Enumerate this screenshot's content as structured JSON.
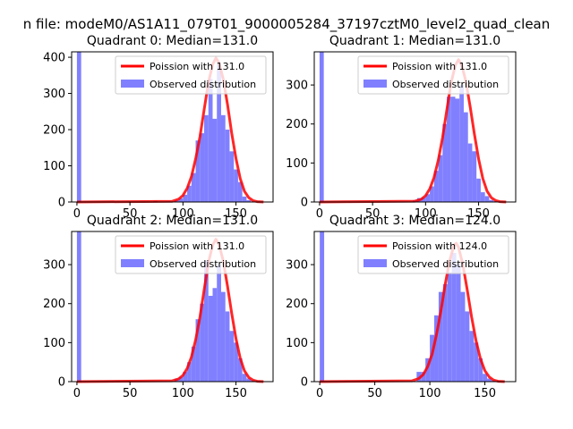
{
  "figure": {
    "title": "n file: modeM0/AS1A11_079T01_9000005284_37197cztM0_level2_quad_clean",
    "background": "#ffffff"
  },
  "colors": {
    "histogram": "#8080ff",
    "poisson": "#ff0000",
    "axis": "#000000"
  },
  "chart_data": [
    {
      "type": "bar+line",
      "title": "Quadrant 0: Median=131.0",
      "xlim": [
        -5,
        185
      ],
      "ylim": [
        0,
        415
      ],
      "xticks": [
        0,
        50,
        100,
        150
      ],
      "yticks": [
        0,
        100,
        200,
        300,
        400
      ],
      "grid": false,
      "legend_position": "top-right",
      "bin_width": 4,
      "histogram": {
        "name": "Observed distribution",
        "bin_starts": [
          0,
          72,
          84,
          92,
          96,
          100,
          104,
          108,
          112,
          116,
          120,
          124,
          128,
          132,
          136,
          140,
          144,
          148,
          152,
          156,
          160
        ],
        "counts": [
          415,
          3,
          2,
          5,
          10,
          20,
          45,
          80,
          170,
          190,
          240,
          340,
          230,
          380,
          240,
          200,
          140,
          90,
          55,
          15,
          5
        ]
      },
      "poisson": {
        "name": "Poission with 131.0",
        "x": [
          0,
          90,
          96,
          100,
          104,
          108,
          112,
          116,
          120,
          124,
          128,
          131,
          134,
          138,
          142,
          146,
          150,
          154,
          158,
          162,
          166,
          170,
          176
        ],
        "y": [
          0,
          2,
          8,
          18,
          38,
          70,
          120,
          180,
          255,
          330,
          380,
          398,
          385,
          340,
          270,
          190,
          120,
          65,
          30,
          12,
          4,
          1,
          0
        ]
      }
    },
    {
      "type": "bar+line",
      "title": "Quadrant 1: Median=131.0",
      "xlim": [
        -5,
        185
      ],
      "ylim": [
        0,
        385
      ],
      "xticks": [
        0,
        50,
        100,
        150
      ],
      "yticks": [
        0,
        100,
        200,
        300
      ],
      "grid": false,
      "legend_position": "top-right",
      "bin_width": 4,
      "histogram": {
        "name": "Observed distribution",
        "bin_starts": [
          0,
          88,
          92,
          96,
          100,
          104,
          108,
          112,
          116,
          120,
          124,
          128,
          132,
          136,
          140,
          144,
          148,
          152,
          156,
          160,
          164
        ],
        "counts": [
          385,
          5,
          10,
          12,
          20,
          40,
          80,
          120,
          200,
          270,
          270,
          265,
          300,
          230,
          150,
          130,
          60,
          25,
          15,
          5,
          2
        ]
      },
      "poisson": {
        "name": "Poission with 131.0",
        "x": [
          0,
          90,
          96,
          100,
          104,
          108,
          112,
          116,
          120,
          124,
          128,
          131,
          134,
          138,
          142,
          146,
          150,
          154,
          158,
          162,
          166,
          170,
          176
        ],
        "y": [
          0,
          2,
          7,
          16,
          34,
          63,
          108,
          165,
          235,
          305,
          350,
          365,
          352,
          310,
          245,
          175,
          110,
          60,
          28,
          11,
          4,
          1,
          0
        ]
      }
    },
    {
      "type": "bar+line",
      "title": "Quadrant 2: Median=131.0",
      "xlim": [
        -5,
        185
      ],
      "ylim": [
        0,
        385
      ],
      "xticks": [
        0,
        50,
        100,
        150
      ],
      "yticks": [
        0,
        100,
        200,
        300
      ],
      "grid": false,
      "legend_position": "top-right",
      "bin_width": 4,
      "histogram": {
        "name": "Observed distribution",
        "bin_starts": [
          0,
          92,
          96,
          100,
          104,
          108,
          112,
          116,
          120,
          124,
          128,
          132,
          136,
          140,
          144,
          148,
          152,
          156,
          160,
          164
        ],
        "counts": [
          385,
          8,
          12,
          25,
          50,
          90,
          160,
          200,
          310,
          220,
          240,
          300,
          230,
          180,
          130,
          100,
          60,
          20,
          8,
          3
        ]
      },
      "poisson": {
        "name": "Poission with 131.0",
        "x": [
          0,
          90,
          96,
          100,
          104,
          108,
          112,
          116,
          120,
          124,
          128,
          131,
          134,
          138,
          142,
          146,
          150,
          154,
          158,
          162,
          166,
          170,
          176
        ],
        "y": [
          0,
          2,
          7,
          16,
          34,
          63,
          108,
          165,
          235,
          305,
          350,
          365,
          352,
          310,
          245,
          175,
          110,
          60,
          28,
          11,
          4,
          1,
          0
        ]
      }
    },
    {
      "type": "bar+line",
      "title": "Quadrant 3: Median=124.0",
      "xlim": [
        -5,
        178
      ],
      "ylim": [
        0,
        385
      ],
      "xticks": [
        0,
        50,
        100,
        150
      ],
      "yticks": [
        0,
        100,
        200,
        300
      ],
      "grid": false,
      "legend_position": "top-right",
      "bin_width": 4,
      "histogram": {
        "name": "Observed distribution",
        "bin_starts": [
          0,
          88,
          92,
          96,
          100,
          104,
          108,
          112,
          116,
          120,
          124,
          128,
          132,
          136,
          140,
          144,
          148,
          152,
          156
        ],
        "counts": [
          385,
          25,
          25,
          60,
          120,
          170,
          230,
          250,
          280,
          330,
          300,
          230,
          180,
          130,
          100,
          60,
          20,
          8,
          3
        ]
      },
      "poisson": {
        "name": "Poission with 124.0",
        "x": [
          0,
          84,
          90,
          94,
          98,
          102,
          106,
          110,
          114,
          118,
          122,
          124,
          126,
          130,
          134,
          138,
          142,
          146,
          150,
          154,
          158,
          162,
          168
        ],
        "y": [
          0,
          2,
          8,
          18,
          38,
          70,
          120,
          180,
          250,
          310,
          350,
          355,
          345,
          300,
          235,
          165,
          105,
          58,
          28,
          12,
          4,
          1,
          0
        ]
      }
    }
  ]
}
